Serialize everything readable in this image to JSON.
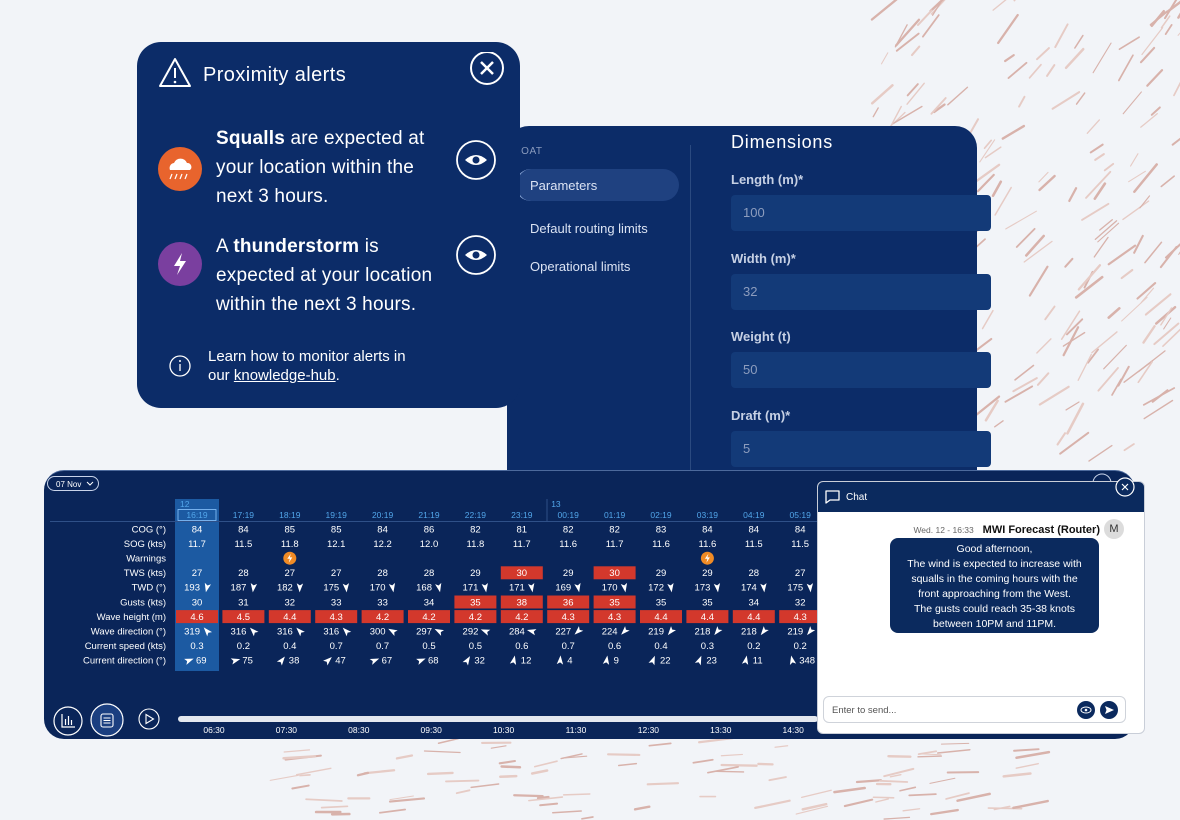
{
  "alerts": {
    "title": "Proximity alerts",
    "items": [
      {
        "bold": "Squalls",
        "after": " are expected at your location within the next 3 hours."
      },
      {
        "before": "A ",
        "bold": "thunderstorm",
        "after": " is expected at your location within the next 3 hours."
      }
    ],
    "footer": {
      "text": "Learn how to monitor alerts in our ",
      "link": "knowledge-hub",
      "end": "."
    }
  },
  "settings": {
    "section": "BOAT",
    "menu": [
      "Parameters",
      "Default routing limits",
      "Operational limits"
    ],
    "heading": "Dimensions",
    "fields": [
      {
        "label": "Length (m)*",
        "value": "100"
      },
      {
        "label": "Width (m)*",
        "value": "32"
      },
      {
        "label": "Weight (t)",
        "value": "50"
      },
      {
        "label": "Draft (m)*",
        "value": "5"
      }
    ]
  },
  "table": {
    "date": "07 Nov",
    "groups": [
      {
        "day": "12",
        "times": [
          "16:19",
          "17:19",
          "18:19",
          "19:19",
          "20:19",
          "21:19",
          "22:19",
          "23:19"
        ]
      },
      {
        "day": "13",
        "times": [
          "00:19",
          "01:19",
          "02:19",
          "03:19",
          "04:19",
          "05:19"
        ]
      }
    ],
    "rows": [
      {
        "label": "COG (°)",
        "values": [
          "84",
          "84",
          "85",
          "85",
          "84",
          "86",
          "82",
          "81",
          "82",
          "82",
          "83",
          "84",
          "84",
          "84"
        ]
      },
      {
        "label": "SOG (kts)",
        "values": [
          "11.7",
          "11.5",
          "11.8",
          "12.1",
          "12.2",
          "12.0",
          "11.8",
          "11.7",
          "11.6",
          "11.7",
          "11.6",
          "11.6",
          "11.5",
          "11.5"
        ]
      },
      {
        "label": "Warnings",
        "flags": [
          false,
          false,
          true,
          false,
          false,
          false,
          false,
          false,
          false,
          false,
          false,
          true,
          false,
          false
        ]
      },
      {
        "label": "TWS (kts)",
        "values": [
          "27",
          "28",
          "27",
          "27",
          "28",
          "28",
          "29",
          "30",
          "29",
          "30",
          "29",
          "29",
          "28",
          "27"
        ],
        "alerts": [
          false,
          false,
          false,
          false,
          false,
          false,
          false,
          true,
          false,
          true,
          false,
          false,
          false,
          false
        ]
      },
      {
        "label": "TWD (°)",
        "arrow": "after",
        "values": [
          "193",
          "187",
          "182",
          "175",
          "170",
          "168",
          "171",
          "171",
          "169",
          "170",
          "172",
          "173",
          "174",
          "175"
        ]
      },
      {
        "label": "Gusts (kts)",
        "values": [
          "30",
          "31",
          "32",
          "33",
          "33",
          "34",
          "35",
          "38",
          "36",
          "35",
          "35",
          "35",
          "34",
          "32"
        ],
        "alerts": [
          false,
          false,
          false,
          false,
          false,
          false,
          true,
          true,
          true,
          true,
          false,
          false,
          false,
          false
        ]
      },
      {
        "label": "Wave height (m)",
        "values": [
          "4.6",
          "4.5",
          "4.4",
          "4.3",
          "4.2",
          "4.2",
          "4.2",
          "4.2",
          "4.3",
          "4.3",
          "4.4",
          "4.4",
          "4.4",
          "4.3"
        ],
        "alerts": [
          true,
          true,
          true,
          true,
          true,
          true,
          true,
          true,
          true,
          true,
          true,
          true,
          true,
          true
        ]
      },
      {
        "label": "Wave direction (°)",
        "arrow": "after",
        "values": [
          "319",
          "316",
          "316",
          "316",
          "300",
          "297",
          "292",
          "284",
          "227",
          "224",
          "219",
          "218",
          "218",
          "219"
        ]
      },
      {
        "label": "Current speed (kts)",
        "values": [
          "0.3",
          "0.2",
          "0.4",
          "0.7",
          "0.7",
          "0.5",
          "0.5",
          "0.6",
          "0.7",
          "0.6",
          "0.4",
          "0.3",
          "0.2",
          "0.2"
        ]
      },
      {
        "label": "Current direction (°)",
        "arrow": "before",
        "values": [
          "69",
          "75",
          "38",
          "47",
          "67",
          "68",
          "32",
          "12",
          "4",
          "9",
          "22",
          "23",
          "11",
          "348"
        ]
      }
    ],
    "timeline": [
      "06:30",
      "07:30",
      "08:30",
      "09:30",
      "10:30",
      "11:30",
      "12:30",
      "13:30",
      "14:30"
    ]
  },
  "chat": {
    "title": "Chat",
    "time": "Wed. 12 - 16:33",
    "sender": "MWI Forecast (Router)",
    "avatar": "M",
    "lines": [
      "Good afternoon,",
      "The wind is expected to increase with",
      "squalls in the coming hours with the",
      "front approaching from the West.",
      "The gusts could reach 35-38 knots",
      "between 10PM and 11PM."
    ],
    "placeholder": "Enter to send..."
  }
}
